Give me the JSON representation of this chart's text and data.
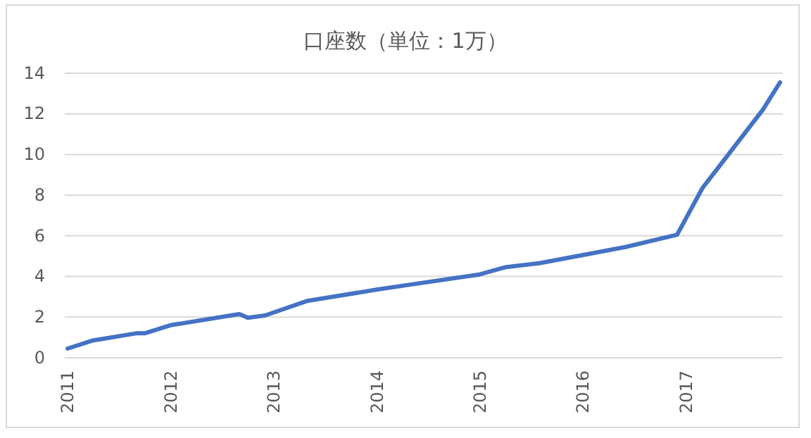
{
  "chart_data": {
    "type": "line",
    "title": "口座数（単位：1万）",
    "x": [
      "2011-01",
      "2011-04",
      "2011-09",
      "2011-10",
      "2012-01",
      "2012-09",
      "2012-10",
      "2012-12",
      "2013-05",
      "2014-01",
      "2014-05",
      "2015-01",
      "2015-04",
      "2015-08",
      "2016-01",
      "2016-06",
      "2016-12",
      "2017-03",
      "2017-10",
      "2017-12"
    ],
    "series": [
      {
        "color": "#4472c4",
        "values": [
          0.45,
          0.85,
          1.2,
          1.2,
          1.6,
          2.15,
          1.97,
          2.08,
          2.8,
          3.35,
          3.6,
          4.1,
          4.45,
          4.65,
          5.05,
          5.45,
          6.05,
          8.35,
          12.2,
          13.55
        ]
      }
    ],
    "xlim": [
      "2011-01",
      "2017-12"
    ],
    "xticks": [
      {
        "value": "2011-01",
        "label": "2011"
      },
      {
        "value": "2012-01",
        "label": "2012"
      },
      {
        "value": "2013-01",
        "label": "2013"
      },
      {
        "value": "2014-01",
        "label": "2014"
      },
      {
        "value": "2015-01",
        "label": "2015"
      },
      {
        "value": "2016-01",
        "label": "2016"
      },
      {
        "value": "2017-01",
        "label": "2017"
      }
    ],
    "ylim": [
      0,
      14
    ],
    "yticks": [
      0,
      2,
      4,
      6,
      8,
      10,
      12,
      14
    ],
    "grid": "y",
    "marker": "none",
    "line_style": "solid"
  }
}
